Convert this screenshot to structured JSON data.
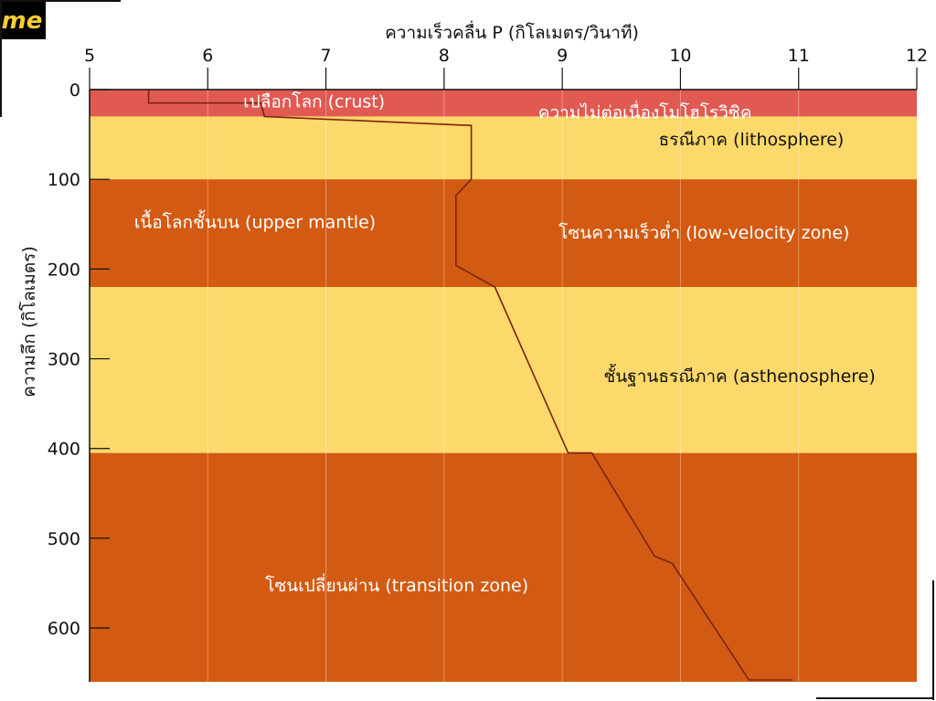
{
  "logo": {
    "text": "me",
    "bg_color": "#000000",
    "text_color": "#ffcc33"
  },
  "chart_data": {
    "type": "line",
    "title": "",
    "xlabel": "ความเร็วคลื่น P (กิโลเมตร/วินาที)",
    "ylabel": "ความลึก (กิโลเมตร)",
    "xlim": [
      5,
      12
    ],
    "ylim": [
      0,
      660
    ],
    "y_inverted": true,
    "x_ticks": [
      5,
      6,
      7,
      8,
      9,
      10,
      11,
      12
    ],
    "y_ticks": [
      0,
      100,
      200,
      300,
      400,
      500,
      600
    ],
    "x_tick_labels": [
      "5",
      "6",
      "7",
      "8",
      "9",
      "10",
      "11",
      "12"
    ],
    "y_tick_labels": [
      "0",
      "100",
      "200",
      "300",
      "400",
      "500",
      "600"
    ],
    "grid": "vertical-light",
    "line_color": "#7a2410",
    "layers": [
      {
        "name": "crust",
        "label": "เปลือกโลก (crust)",
        "top": 0,
        "bottom": 30,
        "color": "#e05a52",
        "label_x": 6.9,
        "label_y": 14,
        "label_color": "#ffffff"
      },
      {
        "name": "lithosphere",
        "label": "ธรณีภาค (lithosphere)",
        "top": 30,
        "bottom": 100,
        "color": "#fdd86a",
        "label_x": 10.6,
        "label_y": 56,
        "label_color": "#111111"
      },
      {
        "name": "upper-mantle",
        "label": "เนื้อโลกชั้นบน (upper mantle)",
        "top": 100,
        "bottom": 220,
        "color": "#d35a12",
        "label_x": 6.4,
        "label_y": 148,
        "label_color": "#ffffff"
      },
      {
        "name": "asthenosphere",
        "label": "ชั้นฐานธรณีภาค (asthenosphere)",
        "top": 220,
        "bottom": 405,
        "color": "#fdd86a",
        "label_x": 10.5,
        "label_y": 320,
        "label_color": "#111111"
      },
      {
        "name": "transition-zone",
        "label": "โซนเปลี่ยนผ่าน (transition zone)",
        "top": 405,
        "bottom": 660,
        "color": "#d35a12",
        "label_x": 7.6,
        "label_y": 553,
        "label_color": "#ffffff"
      }
    ],
    "annotations": [
      {
        "name": "moho-discontinuity",
        "text": "ความไม่ต่อเนื่องโมโฮโรวิซิค",
        "x": 9.7,
        "y": 26,
        "color": "#ffffff"
      },
      {
        "name": "low-velocity-zone",
        "text": "โซนความเร็วต่ำ (low-velocity zone)",
        "x": 10.2,
        "y": 160,
        "color": "#ffffff"
      }
    ],
    "series": [
      {
        "x": [
          5.5,
          5.5,
          6.45,
          6.48,
          8.23,
          8.23,
          8.1,
          8.1,
          8.43,
          9.05,
          9.25,
          9.78,
          9.93,
          10.58,
          10.95
        ],
        "y": [
          0,
          15,
          15,
          30,
          40,
          100,
          118,
          196,
          220,
          405,
          405,
          520,
          528,
          658,
          658
        ]
      }
    ]
  }
}
